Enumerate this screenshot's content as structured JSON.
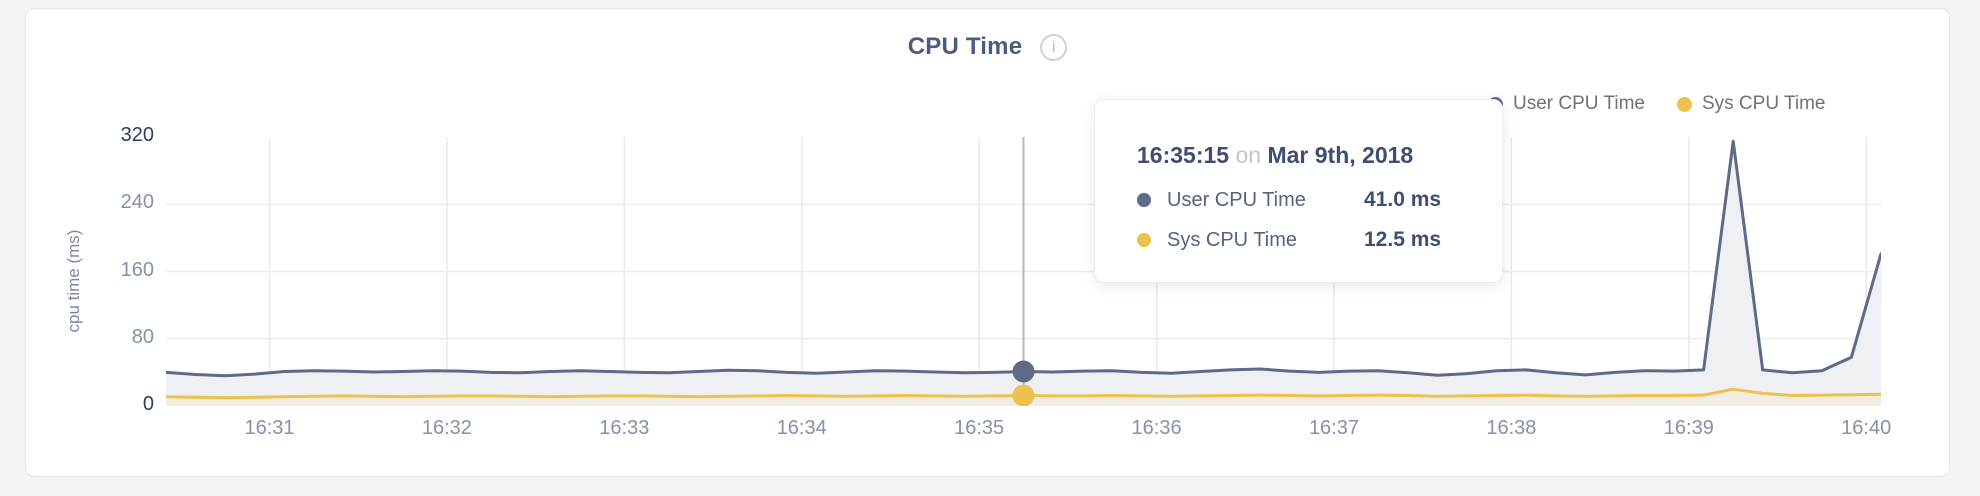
{
  "header": {
    "title": "CPU Time",
    "info_glyph": "i"
  },
  "legend": {
    "items": [
      {
        "label": "User CPU Time",
        "color": "#5d6b87"
      },
      {
        "label": "Sys CPU Time",
        "color": "#ecc14d"
      }
    ]
  },
  "tooltip": {
    "time": "16:35:15",
    "connector": "on",
    "date": "Mar 9th, 2018",
    "rows": [
      {
        "label": "User CPU Time",
        "value": "41.0 ms",
        "color": "#5d6b87"
      },
      {
        "label": "Sys CPU Time",
        "value": "12.5 ms",
        "color": "#ecc14d"
      }
    ]
  },
  "chart_data": {
    "type": "area",
    "title": "CPU Time",
    "xlabel": "",
    "ylabel": "cpu time (ms)",
    "ylim": [
      0,
      320
    ],
    "y_ticks": [
      0,
      80,
      160,
      240,
      320
    ],
    "x_tick_labels": [
      "16:31",
      "16:32",
      "16:33",
      "16:34",
      "16:35",
      "16:36",
      "16:37",
      "16:38",
      "16:39",
      "16:40"
    ],
    "x_tick_seconds": [
      35,
      95,
      155,
      215,
      275,
      335,
      395,
      455,
      515,
      575
    ],
    "x_total_seconds": 580,
    "sample_interval_seconds": 10,
    "grid": true,
    "legend_position": "top-right",
    "series": [
      {
        "name": "User CPU Time",
        "color": "#5d6b87",
        "fill": "#eef0f4",
        "values": [
          40,
          37.5,
          36,
          38,
          41,
          42,
          41.5,
          40.5,
          41,
          42,
          41.5,
          40,
          39.5,
          41,
          42,
          41,
          40,
          39.5,
          41,
          42.5,
          42,
          40,
          39,
          40.5,
          42,
          41.5,
          40.5,
          39.5,
          40,
          41,
          40.5,
          41.5,
          42,
          40,
          39,
          41,
          43,
          44,
          41.5,
          40,
          41.5,
          42,
          39.5,
          36.5,
          38.5,
          42,
          43,
          39.5,
          37,
          40,
          42,
          41.5,
          43,
          315,
          43,
          39.5,
          42,
          58,
          181
        ]
      },
      {
        "name": "Sys CPU Time",
        "color": "#ecc14d",
        "fill": "#f1ede3",
        "values": [
          11,
          10.5,
          10,
          10.5,
          11,
          11.5,
          12,
          11.5,
          11,
          11.5,
          12,
          12,
          11.5,
          11,
          11.5,
          12,
          12,
          11.5,
          11,
          11.5,
          12,
          12.5,
          12,
          11.5,
          12,
          12.5,
          12,
          11.5,
          12,
          12.5,
          12,
          12,
          12.5,
          12,
          11.5,
          12,
          12.5,
          13,
          12.5,
          12,
          12.5,
          13,
          12.5,
          11.5,
          12,
          12.5,
          13,
          12,
          11.5,
          12,
          12.5,
          12.5,
          13,
          20,
          15,
          12.5,
          13,
          13.5,
          14
        ]
      }
    ],
    "hover": {
      "index": 29,
      "time": "16:35:15",
      "values_ms": [
        41.0,
        12.5
      ],
      "line_color": "#b4b7ba"
    },
    "grid_color": "#e9e9e9",
    "axis_label_color": "#8591a5",
    "axis_label_dark_color": "#2e3d5e"
  }
}
